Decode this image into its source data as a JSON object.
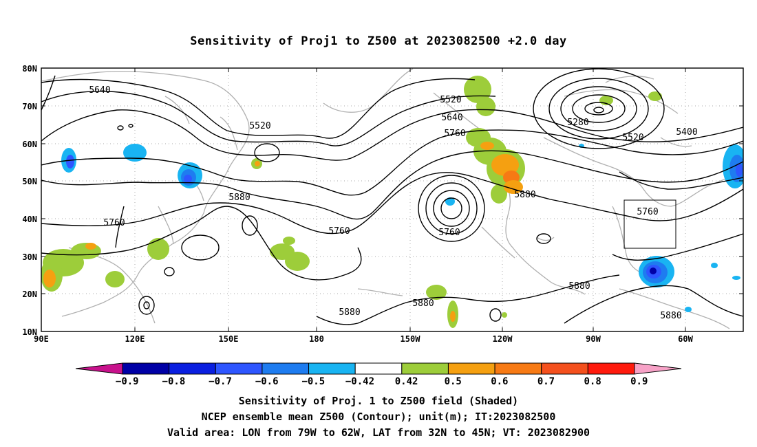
{
  "title": "Sensitivity of Proj1 to Z500 at 2023082500 +2.0 day",
  "captions": [
    "Sensitivity of Proj. 1 to Z500 field (Shaded)",
    "NCEP ensemble mean Z500 (Contour); unit(m); IT:2023082500",
    "Valid area: LON from 79W to 62W, LAT from 32N to 45N; VT: 2023082900"
  ],
  "lat_labels": [
    "80N",
    "70N",
    "60N",
    "50N",
    "40N",
    "30N",
    "20N",
    "10N"
  ],
  "lon_labels": [
    "90E",
    "120E",
    "150E",
    "180",
    "150W",
    "120W",
    "90W",
    "60W"
  ],
  "contour_labels": [
    "5640",
    "5520",
    "5880",
    "5760",
    "5520",
    "5640",
    "5760",
    "5760",
    "5760",
    "5280",
    "5520",
    "5400",
    "5880",
    "5760",
    "5880",
    "5880",
    "5880",
    "5880"
  ],
  "colorbar": {
    "labels": [
      "-0.9",
      "-0.8",
      "-0.7",
      "-0.6",
      "-0.5",
      "-0.42",
      "0.42",
      "0.5",
      "0.6",
      "0.7",
      "0.8",
      "0.9"
    ],
    "colors": [
      "#0000a6",
      "#0a1fe0",
      "#2e56ff",
      "#1e7cf0",
      "#19b4f2",
      "#ffffff",
      "#9dcd3a",
      "#f5a011",
      "#f77a14",
      "#f4501d",
      "#ff1a0d"
    ],
    "under_color": "#c8128c",
    "over_color": "#f7a2c7"
  },
  "valid_area": {
    "lon": [
      -79,
      -62
    ],
    "lat": [
      32,
      45
    ]
  }
}
